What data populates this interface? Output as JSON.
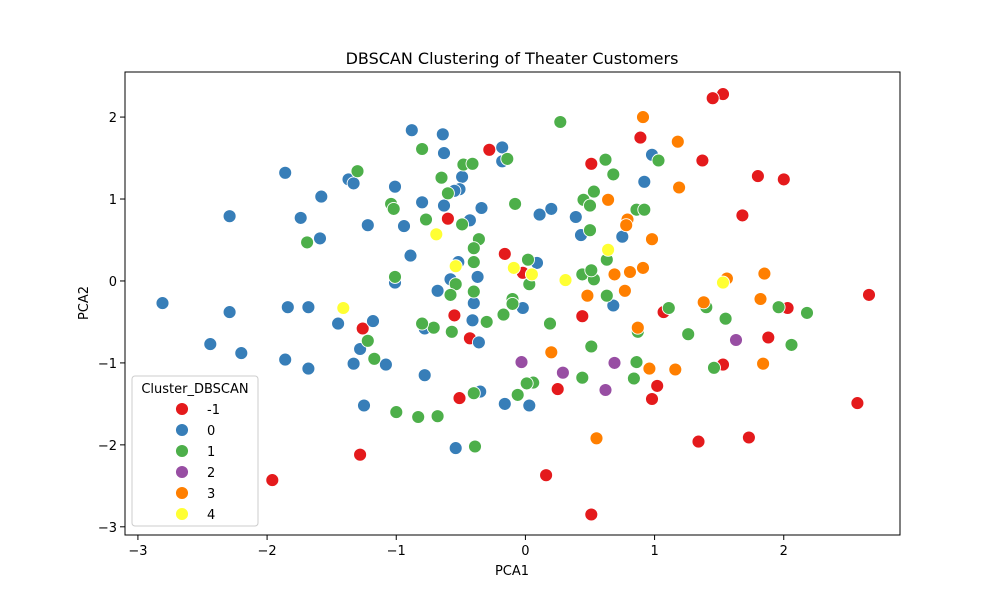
{
  "colors": {
    "-1": "#e41a1c",
    "0": "#377eb8",
    "1": "#4daf4a",
    "2": "#984ea3",
    "3": "#ff7f00",
    "4": "#ffff33"
  },
  "chart_data": {
    "type": "scatter",
    "title": "DBSCAN Clustering of Theater Customers",
    "xlabel": "PCA1",
    "ylabel": "PCA2",
    "xlim": [
      -3.1,
      2.9
    ],
    "ylim": [
      -3.1,
      2.55
    ],
    "xticks": [
      -3,
      -2,
      -1,
      0,
      1,
      2
    ],
    "yticks": [
      -3,
      -2,
      -1,
      0,
      1,
      2
    ],
    "grid": false,
    "legend": {
      "title": "Cluster_DBSCAN",
      "position": "lower-left",
      "labels": [
        "-1",
        "0",
        "1",
        "2",
        "3",
        "4"
      ]
    },
    "series": [
      {
        "name": "-1",
        "points": [
          [
            1.53,
            2.28
          ],
          [
            1.45,
            2.23
          ],
          [
            0.89,
            1.75
          ],
          [
            -0.28,
            1.6
          ],
          [
            0.51,
            1.43
          ],
          [
            1.37,
            1.47
          ],
          [
            1.8,
            1.28
          ],
          [
            2.0,
            1.24
          ],
          [
            1.68,
            0.8
          ],
          [
            -0.6,
            0.76
          ],
          [
            -0.16,
            0.33
          ],
          [
            -0.02,
            0.1
          ],
          [
            2.03,
            -0.33
          ],
          [
            2.66,
            -0.17
          ],
          [
            -0.55,
            -0.42
          ],
          [
            -1.26,
            -0.58
          ],
          [
            -0.43,
            -0.7
          ],
          [
            1.07,
            -0.38
          ],
          [
            0.44,
            -0.43
          ],
          [
            1.88,
            -0.69
          ],
          [
            1.53,
            -1.02
          ],
          [
            1.02,
            -1.28
          ],
          [
            0.25,
            -1.32
          ],
          [
            0.98,
            -1.44
          ],
          [
            -0.51,
            -1.43
          ],
          [
            2.57,
            -1.49
          ],
          [
            1.34,
            -1.96
          ],
          [
            1.73,
            -1.91
          ],
          [
            -1.28,
            -2.12
          ],
          [
            -1.96,
            -2.43
          ],
          [
            0.16,
            -2.37
          ],
          [
            0.51,
            -2.85
          ]
        ]
      },
      {
        "name": "0",
        "points": [
          [
            -0.88,
            1.84
          ],
          [
            -0.64,
            1.79
          ],
          [
            -0.18,
            1.63
          ],
          [
            -0.63,
            1.56
          ],
          [
            0.98,
            1.54
          ],
          [
            -0.18,
            1.46
          ],
          [
            -1.86,
            1.32
          ],
          [
            -1.37,
            1.24
          ],
          [
            -1.33,
            1.19
          ],
          [
            -0.49,
            1.27
          ],
          [
            -0.51,
            1.12
          ],
          [
            -0.55,
            1.1
          ],
          [
            0.92,
            1.21
          ],
          [
            -1.01,
            1.15
          ],
          [
            -1.58,
            1.03
          ],
          [
            -0.8,
            0.96
          ],
          [
            -0.63,
            0.92
          ],
          [
            -0.34,
            0.89
          ],
          [
            0.2,
            0.88
          ],
          [
            0.39,
            0.78
          ],
          [
            0.11,
            0.81
          ],
          [
            -2.29,
            0.79
          ],
          [
            -1.74,
            0.77
          ],
          [
            -0.43,
            0.74
          ],
          [
            -0.94,
            0.67
          ],
          [
            -1.22,
            0.68
          ],
          [
            0.75,
            0.54
          ],
          [
            0.43,
            0.56
          ],
          [
            -1.59,
            0.52
          ],
          [
            -0.89,
            0.31
          ],
          [
            -0.52,
            0.23
          ],
          [
            0.09,
            0.22
          ],
          [
            -0.58,
            0.02
          ],
          [
            -0.37,
            0.05
          ],
          [
            -1.01,
            -0.02
          ],
          [
            -0.68,
            -0.12
          ],
          [
            -0.4,
            -0.27
          ],
          [
            -2.81,
            -0.27
          ],
          [
            -1.84,
            -0.32
          ],
          [
            -1.68,
            -0.32
          ],
          [
            -0.78,
            -0.58
          ],
          [
            -0.41,
            -0.48
          ],
          [
            0.68,
            -0.3
          ],
          [
            -1.45,
            -0.52
          ],
          [
            -1.18,
            -0.49
          ],
          [
            -2.29,
            -0.38
          ],
          [
            -0.36,
            -0.75
          ],
          [
            -2.44,
            -0.77
          ],
          [
            -1.28,
            -0.83
          ],
          [
            -2.2,
            -0.88
          ],
          [
            -1.86,
            -0.96
          ],
          [
            -1.33,
            -1.01
          ],
          [
            -1.08,
            -1.02
          ],
          [
            -1.68,
            -1.07
          ],
          [
            -0.02,
            -0.33
          ],
          [
            -0.78,
            -1.15
          ],
          [
            -0.35,
            -1.35
          ],
          [
            -1.25,
            -1.52
          ],
          [
            -0.16,
            -1.5
          ],
          [
            0.03,
            -1.52
          ],
          [
            -0.54,
            -2.04
          ]
        ]
      },
      {
        "name": "1",
        "points": [
          [
            0.27,
            1.94
          ],
          [
            -0.8,
            1.61
          ],
          [
            -0.14,
            1.49
          ],
          [
            -0.48,
            1.42
          ],
          [
            -0.41,
            1.43
          ],
          [
            0.62,
            1.48
          ],
          [
            1.03,
            1.47
          ],
          [
            -1.3,
            1.34
          ],
          [
            -0.65,
            1.26
          ],
          [
            0.68,
            1.3
          ],
          [
            -0.6,
            1.07
          ],
          [
            0.53,
            1.09
          ],
          [
            0.45,
            0.99
          ],
          [
            0.5,
            0.92
          ],
          [
            -0.08,
            0.94
          ],
          [
            -1.04,
            0.94
          ],
          [
            -1.02,
            0.88
          ],
          [
            0.86,
            0.87
          ],
          [
            0.92,
            0.87
          ],
          [
            -0.77,
            0.75
          ],
          [
            -0.49,
            0.69
          ],
          [
            0.5,
            0.62
          ],
          [
            -0.36,
            0.51
          ],
          [
            -1.69,
            0.47
          ],
          [
            -0.4,
            0.4
          ],
          [
            0.63,
            0.26
          ],
          [
            -0.4,
            0.23
          ],
          [
            0.02,
            0.26
          ],
          [
            -1.01,
            0.05
          ],
          [
            0.44,
            0.08
          ],
          [
            0.53,
            0.02
          ],
          [
            0.51,
            0.13
          ],
          [
            -0.54,
            -0.04
          ],
          [
            0.03,
            -0.04
          ],
          [
            -0.4,
            -0.13
          ],
          [
            -0.1,
            -0.22
          ],
          [
            -0.58,
            -0.17
          ],
          [
            0.63,
            -0.18
          ],
          [
            -0.1,
            -0.28
          ],
          [
            1.11,
            -0.33
          ],
          [
            1.4,
            -0.32
          ],
          [
            -0.17,
            -0.41
          ],
          [
            -0.3,
            -0.5
          ],
          [
            0.19,
            -0.52
          ],
          [
            1.55,
            -0.46
          ],
          [
            -0.71,
            -0.57
          ],
          [
            -0.8,
            -0.52
          ],
          [
            2.18,
            -0.39
          ],
          [
            1.96,
            -0.32
          ],
          [
            -0.57,
            -0.62
          ],
          [
            0.87,
            -0.62
          ],
          [
            1.26,
            -0.65
          ],
          [
            -1.22,
            -0.73
          ],
          [
            0.51,
            -0.8
          ],
          [
            2.06,
            -0.78
          ],
          [
            -1.17,
            -0.95
          ],
          [
            0.86,
            -0.99
          ],
          [
            1.46,
            -1.06
          ],
          [
            0.44,
            -1.18
          ],
          [
            0.84,
            -1.19
          ],
          [
            0.06,
            -1.24
          ],
          [
            0.01,
            -1.25
          ],
          [
            -0.4,
            -1.37
          ],
          [
            -0.06,
            -1.39
          ],
          [
            -1.0,
            -1.6
          ],
          [
            -0.83,
            -1.66
          ],
          [
            -0.68,
            -1.65
          ],
          [
            -0.39,
            -2.02
          ]
        ]
      },
      {
        "name": "2",
        "points": [
          [
            1.63,
            -0.72
          ],
          [
            -0.03,
            -0.99
          ],
          [
            0.69,
            -1.0
          ],
          [
            0.29,
            -1.12
          ],
          [
            0.62,
            -1.33
          ]
        ]
      },
      {
        "name": "3",
        "points": [
          [
            0.91,
            2.0
          ],
          [
            1.18,
            1.7
          ],
          [
            1.19,
            1.14
          ],
          [
            0.64,
            0.99
          ],
          [
            0.79,
            0.75
          ],
          [
            0.78,
            0.68
          ],
          [
            0.98,
            0.51
          ],
          [
            0.91,
            0.16
          ],
          [
            0.81,
            0.11
          ],
          [
            0.69,
            0.08
          ],
          [
            1.56,
            0.03
          ],
          [
            1.85,
            0.09
          ],
          [
            0.48,
            -0.18
          ],
          [
            0.77,
            -0.12
          ],
          [
            1.38,
            -0.26
          ],
          [
            1.82,
            -0.22
          ],
          [
            0.87,
            -0.57
          ],
          [
            0.2,
            -0.87
          ],
          [
            0.96,
            -1.07
          ],
          [
            1.16,
            -1.08
          ],
          [
            1.84,
            -1.01
          ],
          [
            0.55,
            -1.92
          ]
        ]
      },
      {
        "name": "4",
        "points": [
          [
            -0.69,
            0.57
          ],
          [
            0.64,
            0.38
          ],
          [
            -0.54,
            0.18
          ],
          [
            -0.09,
            0.16
          ],
          [
            0.05,
            0.08
          ],
          [
            0.31,
            0.01
          ],
          [
            1.53,
            -0.02
          ],
          [
            -1.41,
            -0.33
          ]
        ]
      }
    ]
  }
}
